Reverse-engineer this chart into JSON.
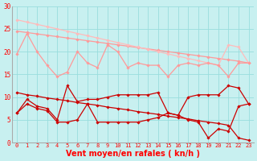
{
  "x": [
    0,
    1,
    2,
    3,
    4,
    5,
    6,
    7,
    8,
    9,
    10,
    11,
    12,
    13,
    14,
    15,
    16,
    17,
    18,
    19,
    20,
    21,
    22,
    23
  ],
  "bg_color": "#c8f0f0",
  "grid_color": "#99dddd",
  "xlabel": "Vent moyen/en rafales ( kn/h )",
  "ylim": [
    0,
    30
  ],
  "yticks": [
    0,
    5,
    10,
    15,
    20,
    25,
    30
  ],
  "xticks": [
    0,
    1,
    2,
    3,
    4,
    5,
    6,
    7,
    8,
    9,
    10,
    11,
    12,
    13,
    14,
    15,
    16,
    17,
    18,
    19,
    20,
    21,
    22,
    23
  ],
  "lp1": [
    24.5,
    24.2,
    23.9,
    23.6,
    23.3,
    23.0,
    22.7,
    22.4,
    22.1,
    21.8,
    21.5,
    21.2,
    20.9,
    20.6,
    20.3,
    20.0,
    19.7,
    19.4,
    19.1,
    18.8,
    18.5,
    18.2,
    17.9,
    17.5
  ],
  "lp2": [
    27.0,
    26.5,
    26.0,
    25.5,
    25.0,
    24.5,
    24.0,
    23.5,
    23.0,
    22.5,
    22.0,
    21.5,
    21.0,
    20.5,
    20.0,
    19.5,
    19.0,
    18.5,
    18.0,
    17.5,
    17.0,
    21.5,
    21.0,
    17.5
  ],
  "lp3": [
    19.5,
    24.0,
    20.0,
    17.0,
    14.5,
    15.5,
    20.0,
    17.5,
    16.5,
    21.5,
    20.0,
    16.5,
    17.5,
    17.0,
    17.0,
    14.5,
    17.0,
    17.5,
    17.0,
    17.5,
    17.0,
    14.5,
    17.5,
    17.5
  ],
  "dr1": [
    6.5,
    9.5,
    8.0,
    7.5,
    5.0,
    12.5,
    9.0,
    9.5,
    9.5,
    10.0,
    10.5,
    10.5,
    10.5,
    10.5,
    11.0,
    6.5,
    6.0,
    10.0,
    10.5,
    10.5,
    10.5,
    12.5,
    12.0,
    8.5
  ],
  "dr2": [
    6.5,
    8.5,
    7.5,
    7.0,
    4.5,
    4.5,
    5.0,
    8.5,
    4.5,
    4.5,
    4.5,
    4.5,
    4.5,
    5.0,
    5.5,
    6.5,
    6.0,
    5.0,
    4.5,
    1.0,
    3.0,
    2.5,
    8.0,
    8.5
  ],
  "dr3": [
    11.0,
    10.5,
    10.2,
    9.8,
    9.5,
    9.2,
    8.8,
    8.5,
    8.2,
    7.8,
    7.5,
    7.2,
    6.8,
    6.5,
    6.2,
    5.8,
    5.5,
    5.2,
    4.8,
    4.5,
    4.2,
    3.8,
    1.0,
    0.5
  ],
  "lp_color": "#ff9999",
  "lp2_color": "#ffbbbb",
  "dr_color": "#cc0000"
}
